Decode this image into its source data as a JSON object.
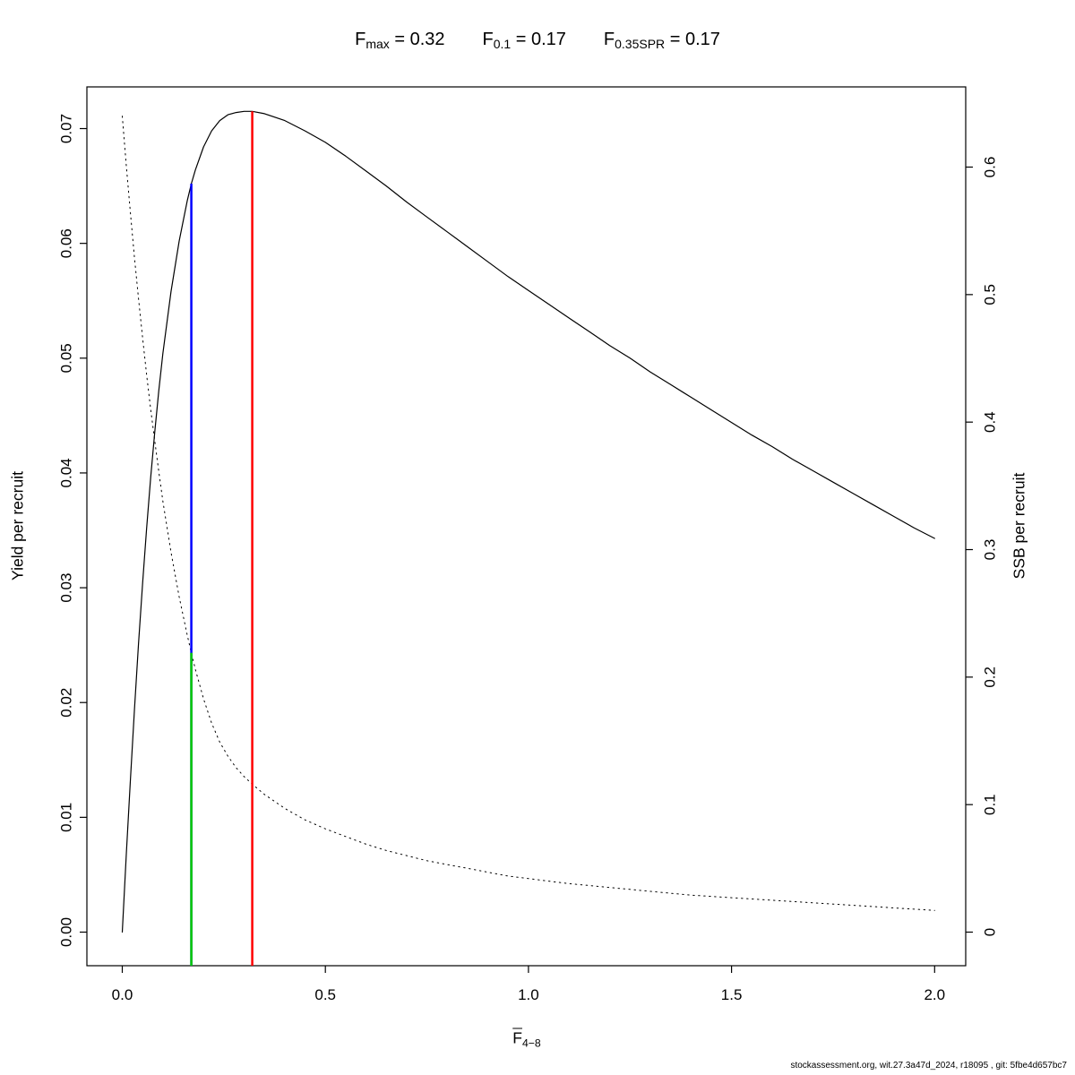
{
  "chart_data": {
    "type": "line",
    "title": {
      "items": [
        {
          "base": "F",
          "sub": "max",
          "rest": " = 0.32"
        },
        {
          "base": "F",
          "sub": "0.1",
          "rest": " = 0.17"
        },
        {
          "base": "F",
          "sub": "0.35SPR",
          "rest": " = 0.17"
        }
      ]
    },
    "x_axis": {
      "label_base": "F",
      "label_sub": "4−8",
      "ticks": [
        0,
        0.5,
        1.0,
        1.5,
        2.0
      ],
      "tick_labels": [
        "0.0",
        "0.5",
        "1.0",
        "1.5",
        "2.0"
      ],
      "range_shown": [
        0,
        2
      ]
    },
    "y_left": {
      "label": "Yield per recruit",
      "ticks": [
        0,
        0.01,
        0.02,
        0.03,
        0.04,
        0.05,
        0.06,
        0.07
      ],
      "tick_labels": [
        "0.00",
        "0.01",
        "0.02",
        "0.03",
        "0.04",
        "0.05",
        "0.06",
        "0.07"
      ],
      "range_shown": [
        0,
        0.0715
      ]
    },
    "y_right": {
      "label": "SSB per recruit",
      "ticks": [
        0,
        0.1,
        0.2,
        0.3,
        0.4,
        0.5,
        0.6
      ],
      "tick_labels": [
        "0",
        "0.1",
        "0.2",
        "0.3",
        "0.4",
        "0.5",
        "0.6"
      ],
      "range_shown": [
        0,
        0.64
      ]
    },
    "x": [
      0,
      0.01,
      0.02,
      0.03,
      0.04,
      0.05,
      0.06,
      0.07,
      0.08,
      0.09,
      0.1,
      0.12,
      0.14,
      0.16,
      0.17,
      0.18,
      0.2,
      0.22,
      0.24,
      0.26,
      0.28,
      0.3,
      0.32,
      0.35,
      0.4,
      0.45,
      0.5,
      0.55,
      0.6,
      0.65,
      0.7,
      0.75,
      0.8,
      0.85,
      0.9,
      0.95,
      1.0,
      1.05,
      1.1,
      1.15,
      1.2,
      1.25,
      1.3,
      1.35,
      1.4,
      1.45,
      1.5,
      1.55,
      1.6,
      1.65,
      1.7,
      1.75,
      1.8,
      1.85,
      1.9,
      1.95,
      2.0
    ],
    "series": [
      {
        "name": "yield-per-recruit",
        "axis": "left",
        "style": "solid",
        "color": "#000000",
        "width": 1.2,
        "values": [
          0.0,
          0.0068,
          0.0133,
          0.0194,
          0.0251,
          0.0304,
          0.0352,
          0.0396,
          0.0436,
          0.0472,
          0.0504,
          0.0558,
          0.0602,
          0.0637,
          0.0652,
          0.0664,
          0.0684,
          0.0698,
          0.0707,
          0.0712,
          0.0714,
          0.0715,
          0.0715,
          0.0713,
          0.0707,
          0.0698,
          0.0688,
          0.0676,
          0.0663,
          0.065,
          0.0636,
          0.0623,
          0.061,
          0.0597,
          0.0584,
          0.0571,
          0.0559,
          0.0547,
          0.0535,
          0.0523,
          0.0511,
          0.05,
          0.0488,
          0.0477,
          0.0466,
          0.0455,
          0.0444,
          0.0433,
          0.0423,
          0.0412,
          0.0402,
          0.0392,
          0.0382,
          0.0372,
          0.0362,
          0.0352,
          0.0343
        ]
      },
      {
        "name": "ssb-per-recruit",
        "axis": "right",
        "style": "dotted",
        "color": "#000000",
        "width": 1.0,
        "values": [
          0.64,
          0.601,
          0.564,
          0.529,
          0.497,
          0.466,
          0.437,
          0.41,
          0.385,
          0.361,
          0.338,
          0.298,
          0.263,
          0.233,
          0.219,
          0.206,
          0.183,
          0.164,
          0.149,
          0.138,
          0.129,
          0.122,
          0.116,
          0.108,
          0.097,
          0.088,
          0.081,
          0.075,
          0.069,
          0.064,
          0.06,
          0.056,
          0.053,
          0.05,
          0.047,
          0.044,
          0.042,
          0.04,
          0.038,
          0.0365,
          0.035,
          0.0335,
          0.032,
          0.0305,
          0.029,
          0.028,
          0.027,
          0.026,
          0.025,
          0.024,
          0.023,
          0.022,
          0.021,
          0.02,
          0.019,
          0.018,
          0.017
        ]
      }
    ],
    "ref_lines": [
      {
        "name": "f01",
        "label": "F0.1",
        "x": 0.17,
        "top": 0.0652,
        "axis": "left",
        "color": "#0000FF",
        "width": 2.5
      },
      {
        "name": "f035spr",
        "label": "F0.35SPR",
        "x": 0.17,
        "top": 0.219,
        "axis": "right",
        "color": "#00CD00",
        "width": 2.5
      },
      {
        "name": "fmax",
        "label": "Fmax",
        "x": 0.32,
        "top": 0.0715,
        "axis": "left",
        "color": "#FF0000",
        "width": 2.5
      }
    ],
    "reference_values": {
      "Fmax": 0.32,
      "F0.1": 0.17,
      "F0.35SPR": 0.17
    },
    "footer": "stockassessment.org, wit.27.3a47d_2024, r18095 , git: 5fbe4d657bc7"
  }
}
